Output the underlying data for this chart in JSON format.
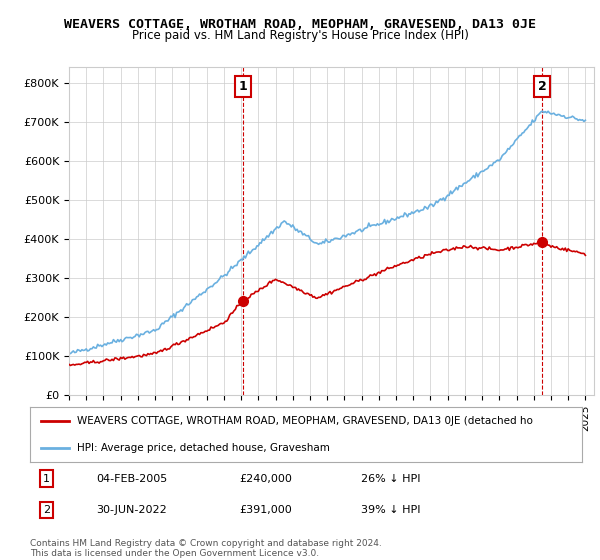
{
  "title": "WEAVERS COTTAGE, WROTHAM ROAD, MEOPHAM, GRAVESEND, DA13 0JE",
  "subtitle": "Price paid vs. HM Land Registry's House Price Index (HPI)",
  "ytick_values": [
    0,
    100000,
    200000,
    300000,
    400000,
    500000,
    600000,
    700000,
    800000
  ],
  "ylim": [
    0,
    840000
  ],
  "xlim_start": 1995.0,
  "xlim_end": 2025.5,
  "hpi_color": "#6ab0e0",
  "property_color": "#cc0000",
  "sale1_year": 2005.09,
  "sale1_price": 240000,
  "sale2_year": 2022.5,
  "sale2_price": 391000,
  "vline_color": "#cc0000",
  "legend_property_label": "WEAVERS COTTAGE, WROTHAM ROAD, MEOPHAM, GRAVESEND, DA13 0JE (detached ho",
  "legend_hpi_label": "HPI: Average price, detached house, Gravesham",
  "table_row1": [
    "1",
    "04-FEB-2005",
    "£240,000",
    "26% ↓ HPI"
  ],
  "table_row2": [
    "2",
    "30-JUN-2022",
    "£391,000",
    "39% ↓ HPI"
  ],
  "footer": "Contains HM Land Registry data © Crown copyright and database right 2024.\nThis data is licensed under the Open Government Licence v3.0.",
  "background_color": "#ffffff",
  "grid_color": "#cccccc",
  "marker1_label": "1",
  "marker2_label": "2"
}
